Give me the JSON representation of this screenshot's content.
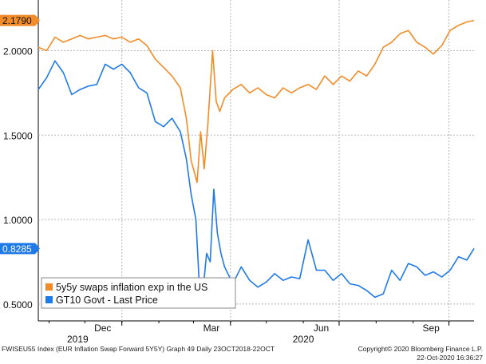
{
  "chart_data": {
    "type": "line",
    "x_range": [
      "2019-10-23",
      "2020-10-22"
    ],
    "ylim": [
      0.4,
      2.3
    ],
    "yticks": [
      "0.5000",
      "1.0000",
      "1.5000",
      "2.0000"
    ],
    "xticks": [
      "Dec",
      "Mar",
      "Jun",
      "Sep"
    ],
    "year_labels": [
      "2019",
      "2020"
    ],
    "grid": true,
    "legend_position": "bottom-left",
    "series": [
      {
        "name": "5y5y swaps inflation exp in the US",
        "color": "#f28c28",
        "last_label": "2.1790",
        "points": [
          [
            "2019-10-23",
            2.02
          ],
          [
            "2019-10-30",
            2.0
          ],
          [
            "2019-11-06",
            2.08
          ],
          [
            "2019-11-13",
            2.05
          ],
          [
            "2019-11-20",
            2.07
          ],
          [
            "2019-11-27",
            2.09
          ],
          [
            "2019-12-04",
            2.07
          ],
          [
            "2019-12-11",
            2.08
          ],
          [
            "2019-12-18",
            2.09
          ],
          [
            "2019-12-25",
            2.07
          ],
          [
            "2020-01-01",
            2.08
          ],
          [
            "2020-01-08",
            2.05
          ],
          [
            "2020-01-15",
            2.07
          ],
          [
            "2020-01-22",
            2.03
          ],
          [
            "2020-01-29",
            1.95
          ],
          [
            "2020-02-05",
            1.9
          ],
          [
            "2020-02-12",
            1.85
          ],
          [
            "2020-02-19",
            1.78
          ],
          [
            "2020-02-24",
            1.6
          ],
          [
            "2020-02-28",
            1.35
          ],
          [
            "2020-03-04",
            1.22
          ],
          [
            "2020-03-07",
            1.52
          ],
          [
            "2020-03-10",
            1.3
          ],
          [
            "2020-03-13",
            1.56
          ],
          [
            "2020-03-17",
            2.0
          ],
          [
            "2020-03-20",
            1.7
          ],
          [
            "2020-03-23",
            1.64
          ],
          [
            "2020-03-27",
            1.72
          ],
          [
            "2020-04-03",
            1.77
          ],
          [
            "2020-04-10",
            1.8
          ],
          [
            "2020-04-17",
            1.75
          ],
          [
            "2020-04-24",
            1.78
          ],
          [
            "2020-05-01",
            1.74
          ],
          [
            "2020-05-08",
            1.72
          ],
          [
            "2020-05-15",
            1.78
          ],
          [
            "2020-05-22",
            1.75
          ],
          [
            "2020-05-29",
            1.78
          ],
          [
            "2020-06-05",
            1.8
          ],
          [
            "2020-06-12",
            1.77
          ],
          [
            "2020-06-19",
            1.85
          ],
          [
            "2020-06-26",
            1.8
          ],
          [
            "2020-07-03",
            1.85
          ],
          [
            "2020-07-10",
            1.82
          ],
          [
            "2020-07-17",
            1.88
          ],
          [
            "2020-07-24",
            1.85
          ],
          [
            "2020-07-31",
            1.92
          ],
          [
            "2020-08-07",
            2.02
          ],
          [
            "2020-08-14",
            2.05
          ],
          [
            "2020-08-21",
            2.1
          ],
          [
            "2020-08-28",
            2.12
          ],
          [
            "2020-09-04",
            2.05
          ],
          [
            "2020-09-11",
            2.02
          ],
          [
            "2020-09-18",
            1.98
          ],
          [
            "2020-09-25",
            2.03
          ],
          [
            "2020-10-02",
            2.12
          ],
          [
            "2020-10-09",
            2.15
          ],
          [
            "2020-10-16",
            2.17
          ],
          [
            "2020-10-22",
            2.179
          ]
        ]
      },
      {
        "name": "GT10 Govt - Last Price",
        "color": "#1f7ae8",
        "last_label": "0.8285",
        "points": [
          [
            "2019-10-23",
            1.77
          ],
          [
            "2019-10-30",
            1.84
          ],
          [
            "2019-11-06",
            1.94
          ],
          [
            "2019-11-13",
            1.87
          ],
          [
            "2019-11-20",
            1.74
          ],
          [
            "2019-11-27",
            1.77
          ],
          [
            "2019-12-04",
            1.79
          ],
          [
            "2019-12-11",
            1.8
          ],
          [
            "2019-12-18",
            1.92
          ],
          [
            "2019-12-25",
            1.89
          ],
          [
            "2020-01-01",
            1.92
          ],
          [
            "2020-01-08",
            1.87
          ],
          [
            "2020-01-15",
            1.78
          ],
          [
            "2020-01-22",
            1.75
          ],
          [
            "2020-01-29",
            1.58
          ],
          [
            "2020-02-05",
            1.55
          ],
          [
            "2020-02-12",
            1.6
          ],
          [
            "2020-02-19",
            1.52
          ],
          [
            "2020-02-24",
            1.36
          ],
          [
            "2020-02-28",
            1.15
          ],
          [
            "2020-03-03",
            1.0
          ],
          [
            "2020-03-06",
            0.6
          ],
          [
            "2020-03-09",
            0.58
          ],
          [
            "2020-03-12",
            0.8
          ],
          [
            "2020-03-15",
            0.75
          ],
          [
            "2020-03-18",
            1.18
          ],
          [
            "2020-03-21",
            0.92
          ],
          [
            "2020-03-24",
            0.8
          ],
          [
            "2020-03-27",
            0.72
          ],
          [
            "2020-04-03",
            0.62
          ],
          [
            "2020-04-10",
            0.72
          ],
          [
            "2020-04-17",
            0.64
          ],
          [
            "2020-04-24",
            0.6
          ],
          [
            "2020-05-01",
            0.63
          ],
          [
            "2020-05-08",
            0.68
          ],
          [
            "2020-05-15",
            0.64
          ],
          [
            "2020-05-22",
            0.66
          ],
          [
            "2020-05-29",
            0.65
          ],
          [
            "2020-06-05",
            0.88
          ],
          [
            "2020-06-12",
            0.7
          ],
          [
            "2020-06-19",
            0.7
          ],
          [
            "2020-06-26",
            0.64
          ],
          [
            "2020-07-03",
            0.68
          ],
          [
            "2020-07-10",
            0.62
          ],
          [
            "2020-07-17",
            0.61
          ],
          [
            "2020-07-24",
            0.58
          ],
          [
            "2020-07-31",
            0.54
          ],
          [
            "2020-08-07",
            0.56
          ],
          [
            "2020-08-14",
            0.7
          ],
          [
            "2020-08-21",
            0.64
          ],
          [
            "2020-08-28",
            0.74
          ],
          [
            "2020-09-04",
            0.72
          ],
          [
            "2020-09-11",
            0.67
          ],
          [
            "2020-09-18",
            0.69
          ],
          [
            "2020-09-25",
            0.66
          ],
          [
            "2020-10-02",
            0.7
          ],
          [
            "2020-10-09",
            0.78
          ],
          [
            "2020-10-16",
            0.76
          ],
          [
            "2020-10-22",
            0.8285
          ]
        ]
      }
    ]
  },
  "footer": {
    "left": "FWISEU55 Index (EUR Inflation Swap Forward 5Y5Y) Graph 49  Daily 23OCT2018-22OCT",
    "right_line1": "Copyright© 2020 Bloomberg Finance L.P.",
    "right_line2": "22-Oct-2020 16:36:27"
  }
}
